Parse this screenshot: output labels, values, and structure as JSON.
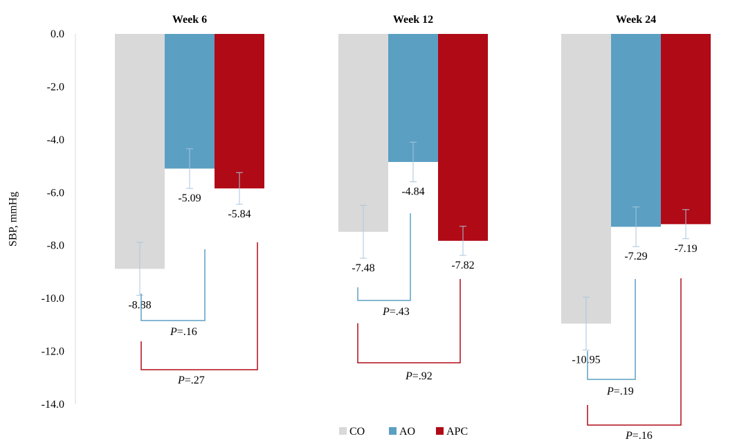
{
  "chart_data": {
    "type": "bar",
    "ylabel": "SBP, mmHg",
    "ylim": [
      -14,
      0
    ],
    "yticks": [
      "0.0",
      "-2.0",
      "-4.0",
      "-6.0",
      "-8.0",
      "-10.0",
      "-12.0",
      "-14.0"
    ],
    "yticks_values": [
      0,
      -2,
      -4,
      -6,
      -8,
      -10,
      -12,
      -14
    ],
    "categories": [
      "Week 6",
      "Week 12",
      "Week 24"
    ],
    "series": [
      {
        "name": "CO",
        "color": "#d9d9d9",
        "values": [
          -8.88,
          -7.48,
          -10.95
        ],
        "labels": [
          "-8.88",
          "-7.48",
          "-10.95"
        ],
        "err": [
          1.0,
          1.0,
          1.0
        ]
      },
      {
        "name": "AO",
        "color": "#5b9fc3",
        "values": [
          -5.09,
          -4.84,
          -7.29
        ],
        "labels": [
          "-5.09",
          "-4.84",
          "-7.29"
        ],
        "err": [
          0.75,
          0.75,
          0.75
        ]
      },
      {
        "name": "APC",
        "color": "#b00a16",
        "values": [
          -5.84,
          -7.82,
          -7.19
        ],
        "labels": [
          "-5.84",
          "-7.82",
          "-7.19"
        ],
        "err": [
          0.6,
          0.55,
          0.55
        ]
      }
    ],
    "comparisons": [
      {
        "week": 0,
        "pair": "CO-AO",
        "label": "P=.16",
        "color": "#5b9fc3"
      },
      {
        "week": 0,
        "pair": "CO-APC",
        "label": "P=.27",
        "color": "#b00a16"
      },
      {
        "week": 1,
        "pair": "CO-AO",
        "label": "P=.43",
        "color": "#5b9fc3"
      },
      {
        "week": 1,
        "pair": "CO-APC",
        "label": "P=.92",
        "color": "#b00a16"
      },
      {
        "week": 2,
        "pair": "CO-AO",
        "label": "P=.19",
        "color": "#5b9fc3"
      },
      {
        "week": 2,
        "pair": "CO-APC",
        "label": "P=.16",
        "color": "#b00a16"
      }
    ],
    "legend_position": "bottom",
    "grid": false
  }
}
